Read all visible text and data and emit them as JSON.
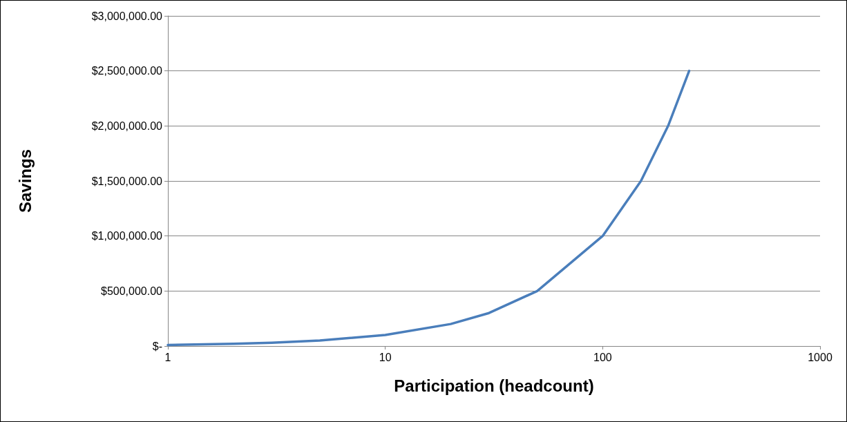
{
  "chart_data": {
    "type": "line",
    "xlabel": "Participation (headcount)",
    "ylabel": "Savings",
    "x": [
      1,
      2,
      3,
      5,
      10,
      20,
      30,
      50,
      100,
      150,
      200,
      250
    ],
    "series": [
      {
        "color": "#4a7ebb",
        "values": [
          10000,
          20000,
          30000,
          50000,
          100000,
          200000,
          300000,
          500000,
          1000000,
          1500000,
          2000000,
          2500000
        ]
      }
    ],
    "log": "x",
    "xlim": [
      1,
      1000
    ],
    "xticks": [
      1,
      10,
      100,
      1000
    ],
    "ylim": [
      0,
      3000000
    ],
    "yticks": [
      {
        "value": 0,
        "label": "$-"
      },
      {
        "value": 500000,
        "label": "$500,000.00"
      },
      {
        "value": 1000000,
        "label": "$1,000,000.00"
      },
      {
        "value": 1500000,
        "label": "$1,500,000.00"
      },
      {
        "value": 2000000,
        "label": "$2,000,000.00"
      },
      {
        "value": 2500000,
        "label": "$2,500,000.00"
      },
      {
        "value": 3000000,
        "label": "$3,000,000.00"
      }
    ],
    "grid": "y",
    "marker": "none",
    "line_style": "solid",
    "legend": false
  }
}
